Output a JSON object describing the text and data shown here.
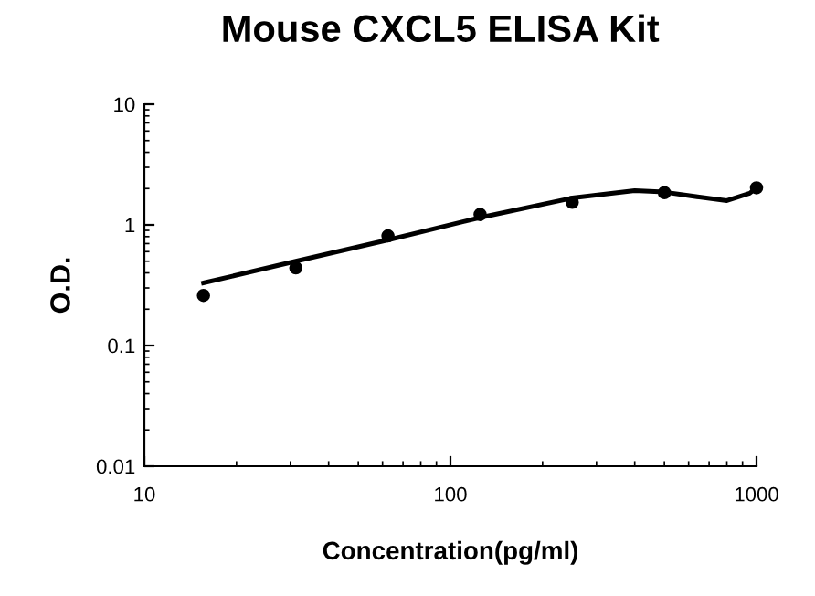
{
  "chart_data": {
    "type": "scatter",
    "title": "Mouse CXCL5 ELISA Kit",
    "xlabel": "Concentration(pg/ml)",
    "ylabel": "O.D.",
    "log": "xy",
    "xlim": [
      10,
      1000
    ],
    "ylim": [
      0.01,
      10
    ],
    "xticks": [
      10,
      100,
      1000
    ],
    "yticks": [
      0.01,
      0.1,
      1,
      10
    ],
    "grid": false,
    "series": [
      {
        "color": "#000000",
        "marker": "circle",
        "x": [
          15.6,
          31.25,
          62.5,
          125,
          250,
          500,
          1000
        ],
        "values": [
          0.26,
          0.44,
          0.81,
          1.22,
          1.54,
          1.85,
          2.03
        ]
      },
      {
        "type": "line",
        "color": "#000000",
        "marker": "none",
        "line_style": "solid",
        "x": [
          15.6,
          31.25,
          62.5,
          125,
          250,
          400,
          500,
          650,
          800,
          950,
          1000
        ],
        "values": [
          0.33,
          0.5,
          0.75,
          1.15,
          1.67,
          1.92,
          1.87,
          1.7,
          1.59,
          1.83,
          2.03
        ]
      }
    ]
  }
}
